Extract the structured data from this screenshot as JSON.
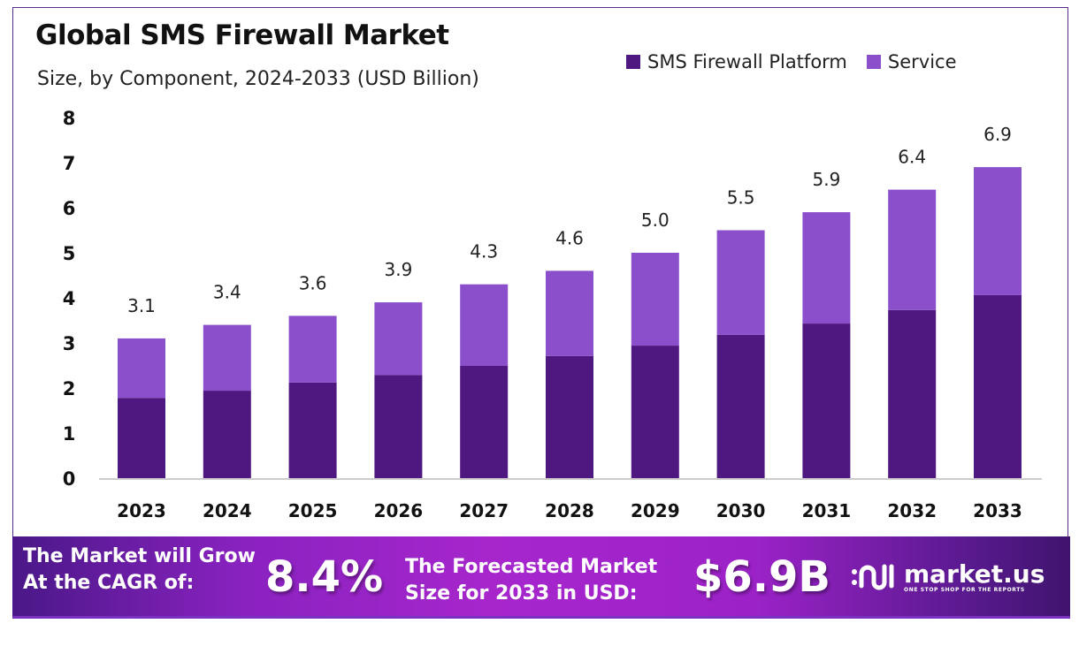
{
  "chart_data": {
    "type": "bar",
    "stacked": true,
    "title": "Global SMS Firewall Market",
    "subtitle": "Size, by Component, 2024-2033 (USD Billion)",
    "xlabel": "",
    "ylabel": "",
    "ylim": [
      0,
      8
    ],
    "yticks": [
      "0",
      "1",
      "2",
      "3",
      "4",
      "5",
      "6",
      "7",
      "8"
    ],
    "grid": false,
    "legend_position": "top-right",
    "categories": [
      "2023",
      "2024",
      "2025",
      "2026",
      "2027",
      "2028",
      "2029",
      "2030",
      "2031",
      "2032",
      "2033"
    ],
    "series": [
      {
        "name": "SMS Firewall Platform",
        "color": "#4f1780",
        "values": [
          1.78,
          1.94,
          2.12,
          2.29,
          2.49,
          2.71,
          2.94,
          3.18,
          3.43,
          3.73,
          4.06
        ]
      },
      {
        "name": "Service",
        "color": "#8b4fcc",
        "values": [
          1.32,
          1.46,
          1.48,
          1.61,
          1.81,
          1.89,
          2.06,
          2.32,
          2.47,
          2.67,
          2.84
        ]
      }
    ],
    "totals": [
      "3.1",
      "3.4",
      "3.6",
      "3.9",
      "4.3",
      "4.6",
      "5.0",
      "5.5",
      "5.9",
      "6.4",
      "6.9"
    ]
  },
  "banner": {
    "cagr_label_1": "The Market will Grow",
    "cagr_label_2": "At the CAGR of:",
    "cagr_value": "8.4%",
    "forecast_label_1": "The Forecasted Market",
    "forecast_label_2": "Size for 2033 in USD:",
    "forecast_value": "$6.9B",
    "logo_name": "market.us",
    "logo_tagline": "ONE STOP SHOP FOR THE REPORTS"
  }
}
